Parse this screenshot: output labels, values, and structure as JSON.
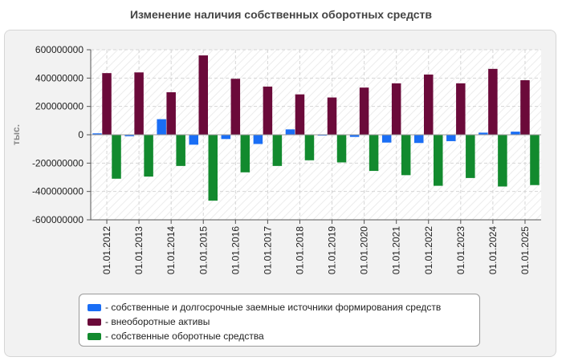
{
  "chart_data": {
    "type": "bar",
    "title": "Изменение наличия собственных оборотных средств",
    "xlabel": "",
    "ylabel": "тыс.",
    "ylim": [
      -600000000,
      600000000
    ],
    "yticks": [
      600000000,
      400000000,
      200000000,
      0,
      -200000000,
      -400000000,
      -600000000
    ],
    "ytick_labels": [
      "600000000",
      "400000000",
      "200000000",
      "0",
      "-200000000",
      "-400000000",
      "-600000000"
    ],
    "grid": true,
    "legend_position": "bottom",
    "categories": [
      "01.01.2012",
      "01.01.2013",
      "01.01.2014",
      "01.01.2015",
      "01.01.2016",
      "01.01.2017",
      "01.01.2018",
      "01.01.2019",
      "01.01.2020",
      "01.01.2021",
      "01.01.2022",
      "01.01.2023",
      "01.01.2024",
      "01.01.2025"
    ],
    "series": [
      {
        "name": "собственные и долгосрочные заемные источники формирования средств",
        "color": "#1a6ef5",
        "values": [
          10000000,
          -10000000,
          110000000,
          -70000000,
          -30000000,
          -65000000,
          38000000,
          -5000000,
          -15000000,
          -55000000,
          -58000000,
          -45000000,
          15000000,
          22000000
        ]
      },
      {
        "name": "внеоборотные активы",
        "color": "#6b0a3a",
        "values": [
          435000000,
          440000000,
          300000000,
          560000000,
          395000000,
          340000000,
          285000000,
          263000000,
          333000000,
          363000000,
          425000000,
          363000000,
          465000000,
          385000000
        ]
      },
      {
        "name": "собственные оборотные средства",
        "color": "#128a2e",
        "values": [
          -310000000,
          -295000000,
          -220000000,
          -465000000,
          -265000000,
          -220000000,
          -180000000,
          -195000000,
          -255000000,
          -285000000,
          -360000000,
          -305000000,
          -365000000,
          -355000000
        ]
      }
    ]
  }
}
